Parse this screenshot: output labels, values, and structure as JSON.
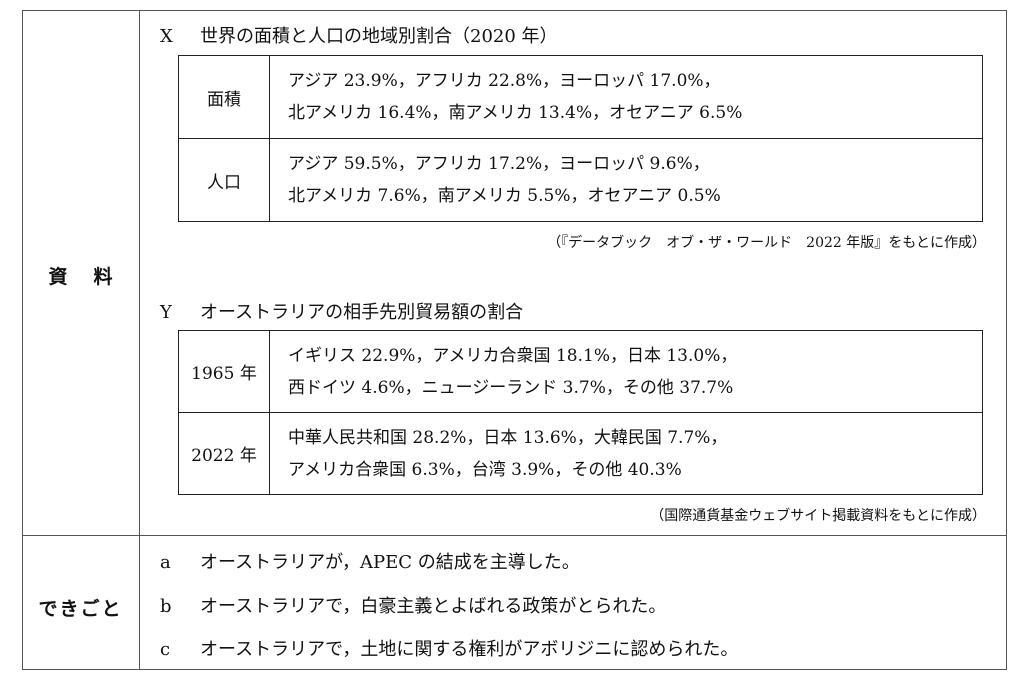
{
  "labels": {
    "materials": "資料",
    "events": "できごと"
  },
  "x": {
    "key": "X",
    "title": "世界の面積と人口の地域別割合（2020 年）",
    "rows": [
      {
        "head": "面積",
        "line1": "アジア 23.9%，アフリカ 22.8%，ヨーロッパ 17.0%，",
        "line2": "北アメリカ 16.4%，南アメリカ 13.4%，オセアニア 6.5%"
      },
      {
        "head": "人口",
        "line1": "アジア 59.5%，アフリカ 17.2%，ヨーロッパ 9.6%，",
        "line2": "北アメリカ 7.6%，南アメリカ 5.5%，オセアニア 0.5%"
      }
    ],
    "source": "（『データブック　オブ・ザ・ワールド　2022 年版』をもとに作成）"
  },
  "y": {
    "key": "Y",
    "title": "オーストラリアの相手先別貿易額の割合",
    "rows": [
      {
        "head": "1965 年",
        "line1": "イギリス 22.9%，アメリカ合衆国 18.1%，日本 13.0%，",
        "line2": "西ドイツ 4.6%，ニュージーランド 3.7%，その他 37.7%"
      },
      {
        "head": "2022 年",
        "line1": "中華人民共和国 28.2%，日本 13.6%，大韓民国 7.7%，",
        "line2": "アメリカ合衆国 6.3%，台湾 3.9%，その他 40.3%"
      }
    ],
    "source": "（国際通貨基金ウェブサイト掲載資料をもとに作成）"
  },
  "events": [
    {
      "key": "a",
      "text": "オーストラリアが，APEC の結成を主導した。"
    },
    {
      "key": "b",
      "text": "オーストラリアで，白豪主義とよばれる政策がとられた。"
    },
    {
      "key": "c",
      "text": "オーストラリアで，土地に関する権利がアボリジニに認められた。"
    }
  ]
}
